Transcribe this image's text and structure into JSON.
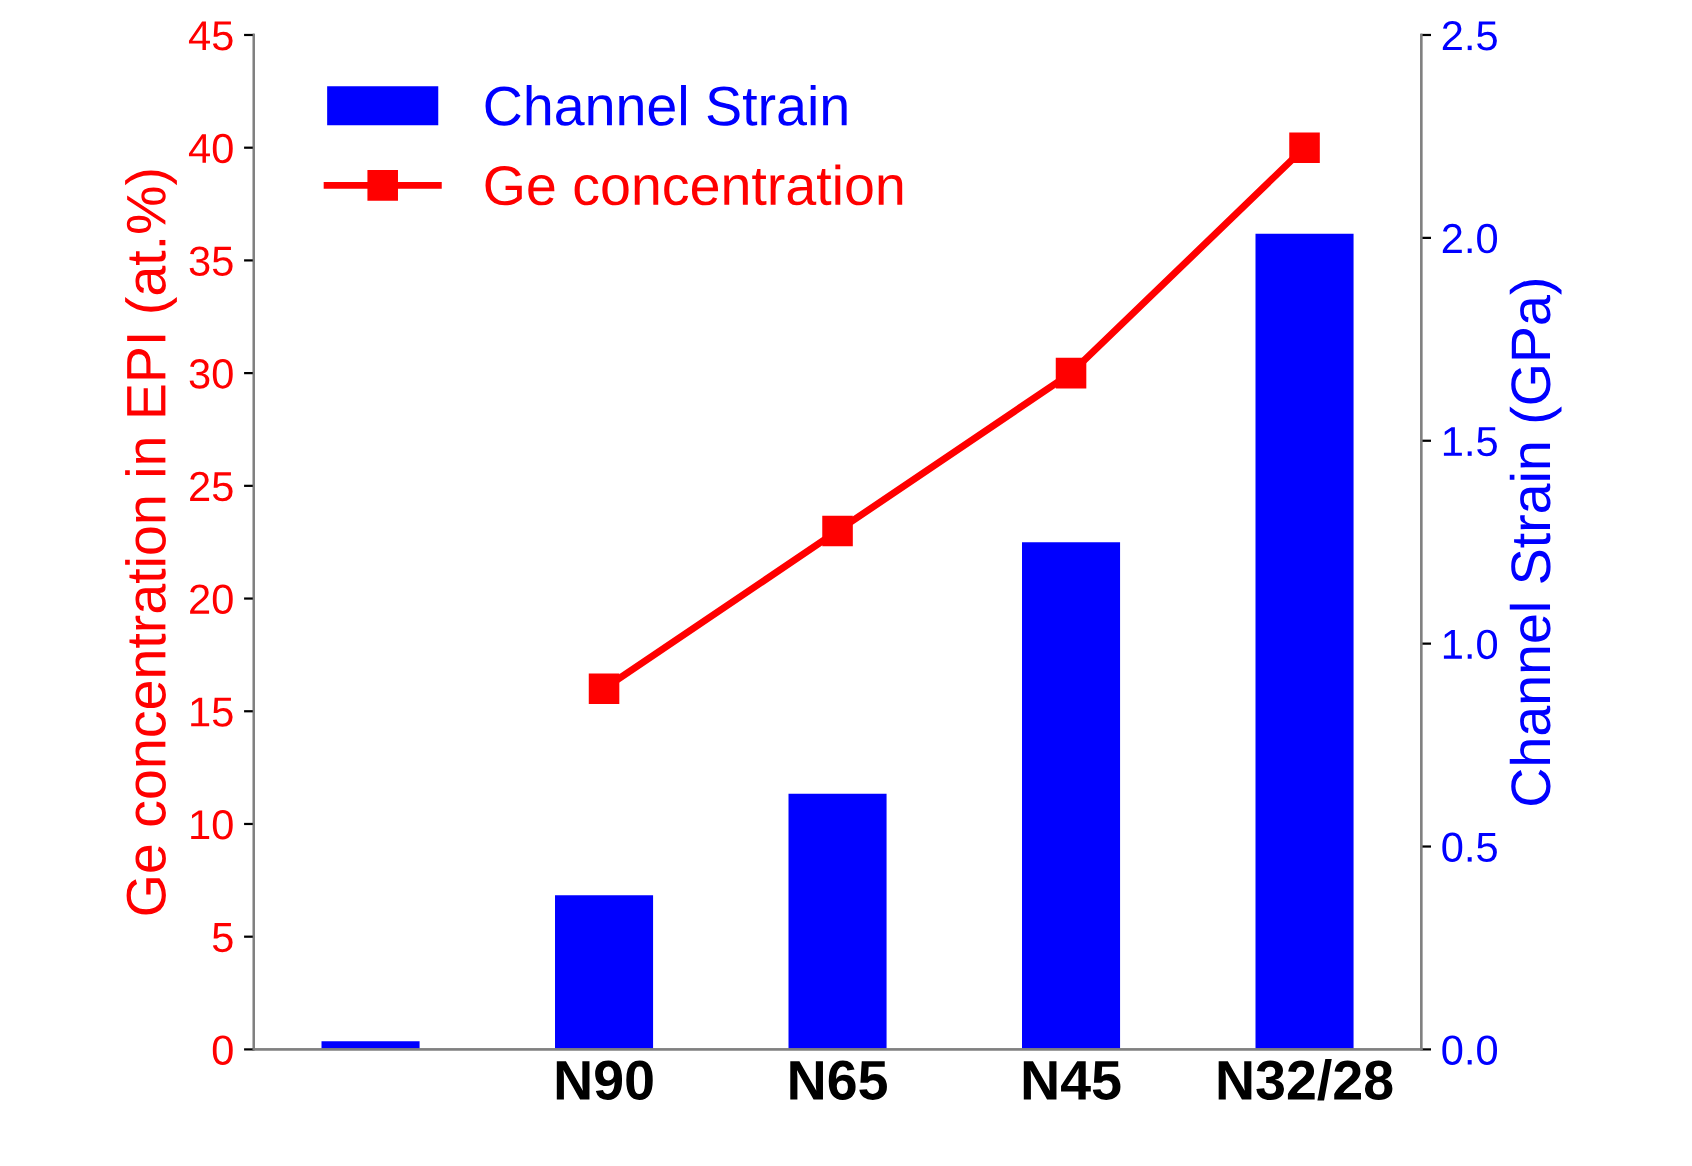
{
  "chart_data": {
    "type": "bar",
    "categories": [
      null,
      "N90",
      "N65",
      "N45",
      "N32/28"
    ],
    "ylabel": "Ge concentration in EPI (at.%)",
    "y2label": "Channel Strain (GPa)",
    "series": [
      {
        "name": "Channel Strain",
        "axis": "y2",
        "color": "#0000ff",
        "values": [
          0.02,
          0.38,
          0.63,
          1.25,
          2.01
        ]
      },
      {
        "name": "Ge concentration",
        "type": "line",
        "axis": "y",
        "color": "#ff0000",
        "marker": "square",
        "values": [
          null,
          16,
          23,
          30,
          40
        ]
      }
    ],
    "ylim": [
      0,
      45
    ],
    "yticks": [
      0,
      5,
      10,
      15,
      20,
      25,
      30,
      35,
      40,
      45
    ],
    "y2lim": [
      0,
      2.5
    ],
    "y2ticks": [
      {
        "value": 0,
        "label": "0.0"
      },
      {
        "value": 0.5,
        "label": "0.5"
      },
      {
        "value": 1,
        "label": "1.0"
      },
      {
        "value": 1.5,
        "label": "1.5"
      },
      {
        "value": 2,
        "label": "2.0"
      },
      {
        "value": 2.5,
        "label": "2.5"
      }
    ],
    "legend": "top left",
    "grid": false
  }
}
